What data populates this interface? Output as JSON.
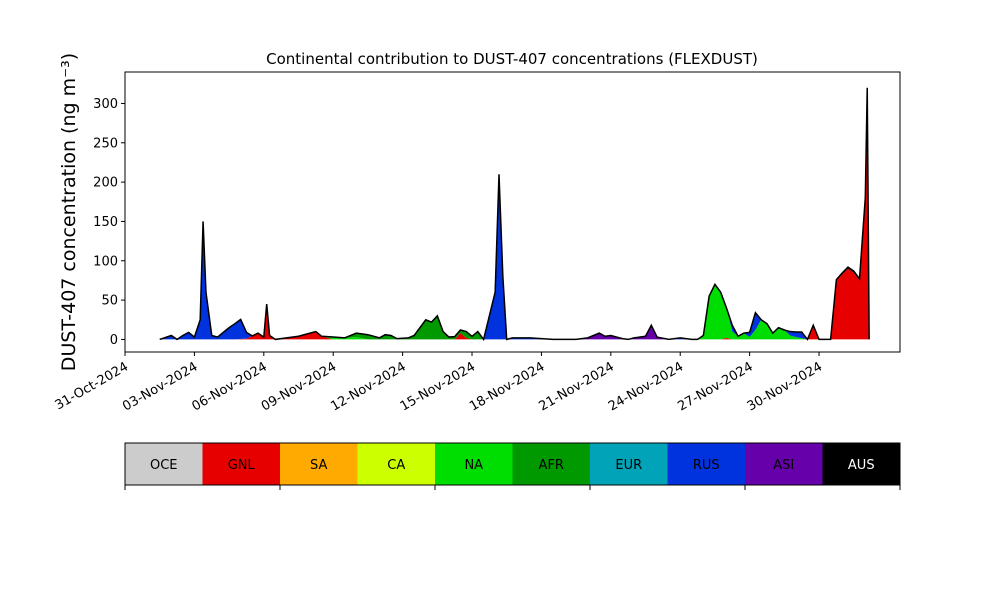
{
  "chart_data": {
    "type": "area",
    "title": "Continental contribution to DUST-407 concentrations (FLEXDUST)",
    "ylabel": "DUST-407 concentration (ng m⁻³)",
    "ylim": [
      -16,
      340
    ],
    "yticks": [
      0,
      50,
      100,
      150,
      200,
      250,
      300
    ],
    "xlim": [
      "2024-10-31T00:00",
      "2024-12-03T12:00"
    ],
    "xticks": [
      {
        "date": "2024-10-31",
        "label": "31-Oct-2024"
      },
      {
        "date": "2024-11-03",
        "label": "03-Nov-2024"
      },
      {
        "date": "2024-11-06",
        "label": "06-Nov-2024"
      },
      {
        "date": "2024-11-09",
        "label": "09-Nov-2024"
      },
      {
        "date": "2024-11-12",
        "label": "12-Nov-2024"
      },
      {
        "date": "2024-11-15",
        "label": "15-Nov-2024"
      },
      {
        "date": "2024-11-18",
        "label": "18-Nov-2024"
      },
      {
        "date": "2024-11-21",
        "label": "21-Nov-2024"
      },
      {
        "date": "2024-11-24",
        "label": "24-Nov-2024"
      },
      {
        "date": "2024-11-27",
        "label": "27-Nov-2024"
      },
      {
        "date": "2024-11-30",
        "label": "30-Nov-2024"
      }
    ],
    "grid": false,
    "stacked": true,
    "series": [
      {
        "name": "GNL",
        "color": "#e60000",
        "points": [
          [
            "2024-11-01T12:00",
            0
          ],
          [
            "2024-11-04T18:00",
            0
          ],
          [
            "2024-11-05T06:00",
            1
          ],
          [
            "2024-11-05T18:00",
            8
          ],
          [
            "2024-11-06T00:00",
            3
          ],
          [
            "2024-11-06T03:00",
            45
          ],
          [
            "2024-11-06T06:00",
            5
          ],
          [
            "2024-11-06T12:00",
            0
          ],
          [
            "2024-11-07T12:00",
            4
          ],
          [
            "2024-11-08T00:00",
            8
          ],
          [
            "2024-11-08T06:00",
            10
          ],
          [
            "2024-11-08T12:00",
            4
          ],
          [
            "2024-11-09T00:00",
            0
          ],
          [
            "2024-11-14T06:00",
            0
          ],
          [
            "2024-11-14T12:00",
            8
          ],
          [
            "2024-11-14T18:00",
            2
          ],
          [
            "2024-11-15T00:00",
            0
          ],
          [
            "2024-11-25T18:00",
            0
          ],
          [
            "2024-11-26T00:00",
            2
          ],
          [
            "2024-11-26T06:00",
            0
          ],
          [
            "2024-11-29T12:00",
            0
          ],
          [
            "2024-11-29T18:00",
            18
          ],
          [
            "2024-11-30T00:00",
            0
          ],
          [
            "2024-11-30T12:00",
            0
          ],
          [
            "2024-11-30T18:00",
            75
          ],
          [
            "2024-12-01T06:00",
            90
          ],
          [
            "2024-12-01T12:00",
            85
          ],
          [
            "2024-12-01T18:00",
            75
          ],
          [
            "2024-12-02T00:00",
            180
          ],
          [
            "2024-12-02T02:00",
            295
          ],
          [
            "2024-12-02T04:00",
            0
          ]
        ]
      },
      {
        "name": "NA",
        "color": "#00dd00",
        "points": [
          [
            "2024-11-01T12:00",
            0
          ],
          [
            "2024-11-08T12:00",
            0
          ],
          [
            "2024-11-09T00:00",
            3
          ],
          [
            "2024-11-09T12:00",
            2
          ],
          [
            "2024-11-10T00:00",
            3
          ],
          [
            "2024-11-10T12:00",
            0
          ],
          [
            "2024-11-24T18:00",
            0
          ],
          [
            "2024-11-25T00:00",
            5
          ],
          [
            "2024-11-25T06:00",
            55
          ],
          [
            "2024-11-25T12:00",
            70
          ],
          [
            "2024-11-25T18:00",
            60
          ],
          [
            "2024-11-26T00:00",
            38
          ],
          [
            "2024-11-26T06:00",
            10
          ],
          [
            "2024-11-26T12:00",
            4
          ],
          [
            "2024-11-26T18:00",
            8
          ],
          [
            "2024-11-27T00:00",
            3
          ],
          [
            "2024-11-27T06:00",
            12
          ],
          [
            "2024-11-27T12:00",
            25
          ],
          [
            "2024-11-27T18:00",
            20
          ],
          [
            "2024-11-28T00:00",
            8
          ],
          [
            "2024-11-28T06:00",
            15
          ],
          [
            "2024-11-28T12:00",
            12
          ],
          [
            "2024-11-28T18:00",
            5
          ],
          [
            "2024-11-29T00:00",
            3
          ],
          [
            "2024-11-29T12:00",
            0
          ]
        ]
      },
      {
        "name": "AFR",
        "color": "#009900",
        "points": [
          [
            "2024-11-01T12:00",
            0
          ],
          [
            "2024-11-09T12:00",
            0
          ],
          [
            "2024-11-10T00:00",
            5
          ],
          [
            "2024-11-10T12:00",
            6
          ],
          [
            "2024-11-11T00:00",
            2
          ],
          [
            "2024-11-11T06:00",
            6
          ],
          [
            "2024-11-11T12:00",
            5
          ],
          [
            "2024-11-11T18:00",
            1
          ],
          [
            "2024-11-12T06:00",
            2
          ],
          [
            "2024-11-12T12:00",
            5
          ],
          [
            "2024-11-13T00:00",
            25
          ],
          [
            "2024-11-13T06:00",
            22
          ],
          [
            "2024-11-13T12:00",
            30
          ],
          [
            "2024-11-13T18:00",
            10
          ],
          [
            "2024-11-14T00:00",
            3
          ],
          [
            "2024-11-14T12:00",
            4
          ],
          [
            "2024-11-14T18:00",
            8
          ],
          [
            "2024-11-15T00:00",
            4
          ],
          [
            "2024-11-15T06:00",
            10
          ],
          [
            "2024-11-15T12:00",
            0
          ]
        ]
      },
      {
        "name": "RUS",
        "color": "#0033dd",
        "points": [
          [
            "2024-11-01T12:00",
            0
          ],
          [
            "2024-11-02T00:00",
            5
          ],
          [
            "2024-11-02T06:00",
            0
          ],
          [
            "2024-11-02T12:00",
            5
          ],
          [
            "2024-11-02T18:00",
            9
          ],
          [
            "2024-11-03T00:00",
            3
          ],
          [
            "2024-11-03T06:00",
            25
          ],
          [
            "2024-11-03T09:00",
            150
          ],
          [
            "2024-11-03T12:00",
            60
          ],
          [
            "2024-11-03T18:00",
            5
          ],
          [
            "2024-11-04T00:00",
            3
          ],
          [
            "2024-11-04T12:00",
            15
          ],
          [
            "2024-11-05T00:00",
            25
          ],
          [
            "2024-11-05T06:00",
            8
          ],
          [
            "2024-11-05T12:00",
            0
          ],
          [
            "2024-11-15T12:00",
            0
          ],
          [
            "2024-11-16T00:00",
            60
          ],
          [
            "2024-11-16T04:00",
            210
          ],
          [
            "2024-11-16T08:00",
            80
          ],
          [
            "2024-11-16T12:00",
            0
          ],
          [
            "2024-11-16T18:00",
            2
          ],
          [
            "2024-11-17T12:00",
            2
          ],
          [
            "2024-11-18T00:00",
            1
          ],
          [
            "2024-11-18T12:00",
            0
          ],
          [
            "2024-11-23T12:00",
            0
          ],
          [
            "2024-11-24T00:00",
            2
          ],
          [
            "2024-11-24T12:00",
            0
          ],
          [
            "2024-11-26T00:00",
            0
          ],
          [
            "2024-11-26T06:00",
            8
          ],
          [
            "2024-11-26T12:00",
            0
          ],
          [
            "2024-11-26T18:00",
            0
          ],
          [
            "2024-11-27T00:00",
            6
          ],
          [
            "2024-11-27T06:00",
            22
          ],
          [
            "2024-11-27T12:00",
            0
          ],
          [
            "2024-11-28T12:00",
            0
          ],
          [
            "2024-11-28T18:00",
            5
          ],
          [
            "2024-11-29T06:00",
            8
          ],
          [
            "2024-11-29T12:00",
            0
          ]
        ]
      },
      {
        "name": "ASI",
        "color": "#6600aa",
        "points": [
          [
            "2024-11-01T12:00",
            0
          ],
          [
            "2024-11-19T12:00",
            0
          ],
          [
            "2024-11-20T00:00",
            2
          ],
          [
            "2024-11-20T12:00",
            8
          ],
          [
            "2024-11-20T18:00",
            4
          ],
          [
            "2024-11-21T00:00",
            5
          ],
          [
            "2024-11-21T12:00",
            1
          ],
          [
            "2024-11-21T18:00",
            0
          ],
          [
            "2024-11-22T00:00",
            2
          ],
          [
            "2024-11-22T12:00",
            4
          ],
          [
            "2024-11-22T18:00",
            18
          ],
          [
            "2024-11-23T00:00",
            3
          ],
          [
            "2024-11-23T12:00",
            0
          ]
        ]
      },
      {
        "name": "AUS",
        "color": "#000000",
        "points": [
          [
            "2024-11-01T12:00",
            0
          ],
          [
            "2024-11-30T12:00",
            0
          ],
          [
            "2024-12-01T00:00",
            2
          ],
          [
            "2024-12-01T18:00",
            2
          ],
          [
            "2024-12-02T00:00",
            0
          ],
          [
            "2024-12-02T02:00",
            25
          ],
          [
            "2024-12-02T04:00",
            0
          ]
        ]
      }
    ],
    "total_line_color": "#000000",
    "legend": {
      "placement": "colorbar-below",
      "items": [
        {
          "label": "OCE",
          "color": "#cccccc"
        },
        {
          "label": "GNL",
          "color": "#e60000"
        },
        {
          "label": "SA",
          "color": "#ffaa00"
        },
        {
          "label": "CA",
          "color": "#ccff00"
        },
        {
          "label": "NA",
          "color": "#00dd00"
        },
        {
          "label": "AFR",
          "color": "#009900"
        },
        {
          "label": "EUR",
          "color": "#00a3b8"
        },
        {
          "label": "RUS",
          "color": "#0033dd"
        },
        {
          "label": "ASI",
          "color": "#6600aa"
        },
        {
          "label": "AUS",
          "color": "#000000"
        }
      ]
    }
  }
}
